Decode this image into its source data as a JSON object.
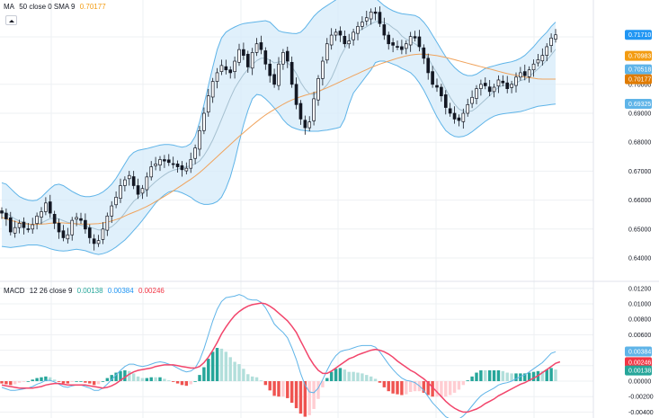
{
  "colors": {
    "up": "#26a69a",
    "down": "#ef5350",
    "upLight": "#b2dfdb",
    "downLight": "#ffcdd2",
    "band": "#5fb4e8",
    "bandFill": "#d6ebf9",
    "sma": "#a5c0d0",
    "ma50": "#f0a35c",
    "macdLine": "#5fb4e8",
    "signalLine": "#f2456b",
    "grid": "#eef0f3",
    "tagBlue": "#2196f3",
    "tagOrange": "#f39c12",
    "tagOrangeDark": "#e07b00",
    "tagLightBlue": "#5fb4e8",
    "tagRed": "#f23645",
    "tagTeal": "#26a69a"
  },
  "legend_main": {
    "name": "MA",
    "params": "50 close 0 SMA 9",
    "value": "0.70177"
  },
  "legend_macd": {
    "name": "MACD",
    "params": "12 26 close 9",
    "hist": "0.00138",
    "macd": "0.00384",
    "signal": "0.00246"
  },
  "chart_data": {
    "type": "candlestick",
    "price_axis": {
      "ticks": [
        "0.71640",
        "0.70000",
        "0.69000",
        "0.68000",
        "0.67000",
        "0.66000",
        "0.65000",
        "0.64000"
      ],
      "tags": [
        {
          "label": "0.71710",
          "value": 0.7171,
          "color": "tagBlue"
        },
        {
          "label": "0.70983",
          "value": 0.70983,
          "color": "tagOrange"
        },
        {
          "label": "0.70518",
          "value": 0.70518,
          "color": "tagLightBlue"
        },
        {
          "label": "0.70177",
          "value": 0.70177,
          "color": "tagOrangeDark"
        },
        {
          "label": "0.69325",
          "value": 0.69325,
          "color": "tagLightBlue"
        }
      ]
    },
    "macd_axis": {
      "ticks": [
        "0.01200",
        "0.01000",
        "0.00800",
        "0.00600",
        "0.00400",
        "0.00200",
        "0.00000",
        "-0.00200",
        "-0.00400"
      ],
      "tags": [
        {
          "label": "0.00384",
          "value": 0.00384,
          "color": "tagLightBlue"
        },
        {
          "label": "0.00246",
          "value": 0.00246,
          "color": "tagRed"
        },
        {
          "label": "0.00138",
          "value": 0.00138,
          "color": "tagTeal"
        }
      ]
    },
    "price_closes": [
      0.6555,
      0.6535,
      0.649,
      0.6505,
      0.652,
      0.6505,
      0.65,
      0.6515,
      0.6545,
      0.656,
      0.659,
      0.6555,
      0.652,
      0.649,
      0.647,
      0.648,
      0.653,
      0.654,
      0.653,
      0.65,
      0.647,
      0.645,
      0.646,
      0.65,
      0.6545,
      0.658,
      0.661,
      0.665,
      0.667,
      0.6685,
      0.665,
      0.662,
      0.664,
      0.668,
      0.6715,
      0.6725,
      0.674,
      0.6735,
      0.673,
      0.6725,
      0.6715,
      0.6705,
      0.671,
      0.674,
      0.678,
      0.684,
      0.69,
      0.696,
      0.701,
      0.704,
      0.7065,
      0.705,
      0.704,
      0.708,
      0.712,
      0.71,
      0.706,
      0.711,
      0.714,
      0.712,
      0.707,
      0.703,
      0.7,
      0.707,
      0.711,
      0.708,
      0.7,
      0.693,
      0.688,
      0.685,
      0.687,
      0.695,
      0.702,
      0.708,
      0.714,
      0.717,
      0.718,
      0.717,
      0.714,
      0.715,
      0.718,
      0.72,
      0.7215,
      0.723,
      0.725,
      0.7245,
      0.721,
      0.717,
      0.714,
      0.7135,
      0.713,
      0.712,
      0.714,
      0.7165,
      0.716,
      0.713,
      0.709,
      0.704,
      0.7,
      0.699,
      0.696,
      0.692,
      0.69,
      0.688,
      0.6875,
      0.69,
      0.693,
      0.6955,
      0.6985,
      0.7,
      0.6995,
      0.6975,
      0.699,
      0.7015,
      0.7005,
      0.6985,
      0.7,
      0.7025,
      0.704,
      0.703,
      0.705,
      0.707,
      0.7085,
      0.71,
      0.713,
      0.716,
      0.7171
    ],
    "sma9": [
      0.656,
      0.6555,
      0.6545,
      0.6535,
      0.6528,
      0.6522,
      0.6518,
      0.6515,
      0.6516,
      0.6521,
      0.6529,
      0.6536,
      0.6538,
      0.6535,
      0.6529,
      0.6523,
      0.6521,
      0.6518,
      0.6513,
      0.651,
      0.6506,
      0.6502,
      0.6497,
      0.6497,
      0.6501,
      0.6508,
      0.6521,
      0.6537,
      0.6556,
      0.6577,
      0.6596,
      0.6608,
      0.6621,
      0.6635,
      0.665,
      0.6664,
      0.6676,
      0.6687,
      0.6697,
      0.6703,
      0.6707,
      0.6711,
      0.6715,
      0.6719,
      0.6725,
      0.6735,
      0.6754,
      0.6779,
      0.6808,
      0.6843,
      0.6879,
      0.6916,
      0.6953,
      0.6986,
      0.7011,
      0.7034,
      0.7052,
      0.7068,
      0.7082,
      0.709,
      0.709,
      0.7084,
      0.7074,
      0.7077,
      0.7079,
      0.7074,
      0.7061,
      0.7037,
      0.7007,
      0.6984,
      0.6967,
      0.6965,
      0.6973,
      0.6982,
      0.6998,
      0.7022,
      0.7057,
      0.7095,
      0.7123,
      0.715,
      0.717,
      0.7181,
      0.7191,
      0.7199,
      0.7209,
      0.7216,
      0.7218,
      0.7213,
      0.7207,
      0.7195,
      0.7185,
      0.7167,
      0.7156,
      0.7148,
      0.714,
      0.713,
      0.7114,
      0.7092,
      0.7063,
      0.7039,
      0.7014,
      0.6983,
      0.6955,
      0.6932,
      0.6915,
      0.6907,
      0.6906,
      0.6908,
      0.6919,
      0.6933,
      0.6947,
      0.6961,
      0.6976,
      0.6989,
      0.6996,
      0.6997,
      0.6999,
      0.7004,
      0.7013,
      0.7017,
      0.7027,
      0.704,
      0.7053,
      0.7068,
      0.7083,
      0.7102,
      0.7121
    ],
    "ma50_line": [
      0.654,
      0.6535,
      0.653,
      0.6526,
      0.6522,
      0.6519,
      0.6517,
      0.6516,
      0.6516,
      0.6517,
      0.6518,
      0.652,
      0.6521,
      0.6522,
      0.6521,
      0.652,
      0.6519,
      0.6518,
      0.6517,
      0.6517,
      0.6517,
      0.6518,
      0.6519,
      0.6521,
      0.6524,
      0.6528,
      0.6533,
      0.6538,
      0.6545,
      0.6552,
      0.6558,
      0.6564,
      0.6571,
      0.6578,
      0.6586,
      0.6595,
      0.6604,
      0.6613,
      0.6622,
      0.6632,
      0.6642,
      0.6652,
      0.6662,
      0.6672,
      0.6683,
      0.6695,
      0.6708,
      0.6722,
      0.6736,
      0.675,
      0.6764,
      0.6778,
      0.6792,
      0.6806,
      0.682,
      0.6833,
      0.6846,
      0.6859,
      0.6871,
      0.6883,
      0.6894,
      0.6904,
      0.6913,
      0.6922,
      0.6931,
      0.6939,
      0.6946,
      0.6952,
      0.6957,
      0.6962,
      0.6966,
      0.6971,
      0.6976,
      0.6982,
      0.6988,
      0.6995,
      0.7002,
      0.7009,
      0.7016,
      0.7023,
      0.703,
      0.7037,
      0.7044,
      0.7051,
      0.7058,
      0.7064,
      0.707,
      0.7075,
      0.708,
      0.7085,
      0.709,
      0.7094,
      0.7098,
      0.7101,
      0.7103,
      0.7104,
      0.7104,
      0.7103,
      0.7101,
      0.7099,
      0.7096,
      0.7093,
      0.7089,
      0.7085,
      0.7081,
      0.7077,
      0.7073,
      0.7069,
      0.7065,
      0.7061,
      0.7057,
      0.7053,
      0.7049,
      0.7045,
      0.7041,
      0.7037,
      0.7034,
      0.7031,
      0.7028,
      0.7025,
      0.7023,
      0.7021,
      0.7019,
      0.7018,
      0.7018,
      0.7018,
      0.7018
    ],
    "bb_upper": [
      0.666,
      0.6655,
      0.664,
      0.6625,
      0.6612,
      0.6605,
      0.66,
      0.6598,
      0.66,
      0.661,
      0.6625,
      0.664,
      0.6652,
      0.6655,
      0.665,
      0.664,
      0.663,
      0.6622,
      0.6615,
      0.6612,
      0.6612,
      0.6615,
      0.662,
      0.6628,
      0.664,
      0.6655,
      0.6675,
      0.67,
      0.6725,
      0.675,
      0.6765,
      0.6772,
      0.6775,
      0.6778,
      0.6782,
      0.6786,
      0.679,
      0.6792,
      0.6792,
      0.679,
      0.6786,
      0.6783,
      0.6786,
      0.6795,
      0.682,
      0.687,
      0.693,
      0.6995,
      0.706,
      0.712,
      0.716,
      0.718,
      0.719,
      0.7198,
      0.7205,
      0.721,
      0.7212,
      0.7214,
      0.7216,
      0.7218,
      0.722,
      0.7215,
      0.72,
      0.7185,
      0.718,
      0.7178,
      0.7176,
      0.7175,
      0.718,
      0.7195,
      0.7215,
      0.7235,
      0.725,
      0.7262,
      0.7272,
      0.7282,
      0.7292,
      0.73,
      0.7308,
      0.7313,
      0.7318,
      0.732,
      0.7322,
      0.7318,
      0.731,
      0.7298,
      0.7285,
      0.7272,
      0.7262,
      0.7254,
      0.7248,
      0.7244,
      0.7242,
      0.724,
      0.7238,
      0.723,
      0.7215,
      0.7195,
      0.717,
      0.7145,
      0.712,
      0.7095,
      0.7075,
      0.7058,
      0.7045,
      0.7035,
      0.703,
      0.703,
      0.7035,
      0.7045,
      0.7055,
      0.706,
      0.7064,
      0.7068,
      0.7072,
      0.7075,
      0.7078,
      0.7083,
      0.709,
      0.71,
      0.7115,
      0.713,
      0.7148,
      0.7165,
      0.718,
      0.72,
      0.7215
    ],
    "bb_lower": [
      0.644,
      0.6438,
      0.6436,
      0.6438,
      0.644,
      0.6442,
      0.6445,
      0.6445,
      0.6445,
      0.6442,
      0.6438,
      0.6432,
      0.6428,
      0.6425,
      0.6424,
      0.6425,
      0.6428,
      0.643,
      0.6428,
      0.6425,
      0.642,
      0.6415,
      0.6412,
      0.6415,
      0.642,
      0.6428,
      0.6438,
      0.645,
      0.6462,
      0.6478,
      0.6495,
      0.6512,
      0.653,
      0.655,
      0.657,
      0.659,
      0.6605,
      0.6618,
      0.6628,
      0.6632,
      0.663,
      0.6625,
      0.6618,
      0.661,
      0.6598,
      0.659,
      0.6585,
      0.6585,
      0.6588,
      0.6595,
      0.661,
      0.664,
      0.668,
      0.6735,
      0.68,
      0.686,
      0.691,
      0.695,
      0.6965,
      0.6962,
      0.695,
      0.6935,
      0.6918,
      0.69,
      0.6878,
      0.6862,
      0.6852,
      0.6846,
      0.6842,
      0.684,
      0.6838,
      0.6838,
      0.6838,
      0.684,
      0.6842,
      0.6845,
      0.6848,
      0.6852,
      0.688,
      0.693,
      0.697,
      0.699,
      0.701,
      0.703,
      0.705,
      0.7075,
      0.708,
      0.708,
      0.7076,
      0.707,
      0.7064,
      0.7055,
      0.7048,
      0.704,
      0.7025,
      0.7005,
      0.698,
      0.695,
      0.6918,
      0.6888,
      0.6862,
      0.684,
      0.6828,
      0.682,
      0.6818,
      0.682,
      0.6826,
      0.6836,
      0.6848,
      0.686,
      0.6872,
      0.6882,
      0.689,
      0.6895,
      0.6898,
      0.69,
      0.6902,
      0.6904,
      0.6906,
      0.691,
      0.6915,
      0.692,
      0.6924,
      0.6926,
      0.6928,
      0.693,
      0.6932
    ],
    "macd_line": [
      -0.0008,
      -0.001,
      -0.0012,
      -0.0012,
      -0.0011,
      -0.001,
      -0.0009,
      -0.0007,
      -0.0004,
      -0.0002,
      0.0001,
      0.0001,
      -0.0001,
      -0.0004,
      -0.0007,
      -0.0008,
      -0.0006,
      -0.0005,
      -0.0005,
      -0.0007,
      -0.0009,
      -0.0012,
      -0.0012,
      -0.0009,
      -0.0004,
      0.0002,
      0.0008,
      0.0014,
      0.0019,
      0.0022,
      0.0022,
      0.002,
      0.0019,
      0.002,
      0.0022,
      0.0024,
      0.0025,
      0.0024,
      0.0022,
      0.002,
      0.0017,
      0.0014,
      0.0012,
      0.0013,
      0.0017,
      0.0027,
      0.0042,
      0.006,
      0.0078,
      0.0093,
      0.0103,
      0.0108,
      0.0109,
      0.011,
      0.0112,
      0.011,
      0.0106,
      0.0105,
      0.0105,
      0.0102,
      0.0095,
      0.0085,
      0.0074,
      0.0068,
      0.0063,
      0.0056,
      0.0043,
      0.0028,
      0.001,
      -0.0005,
      -0.0014,
      -0.0015,
      -0.0009,
      0.0002,
      0.0014,
      0.0025,
      0.0033,
      0.0038,
      0.004,
      0.0041,
      0.0043,
      0.0045,
      0.0046,
      0.0046,
      0.0046,
      0.0044,
      0.0038,
      0.003,
      0.0022,
      0.0015,
      0.0009,
      0.0004,
      0.0001,
      0.0,
      -0.0002,
      -0.0006,
      -0.0012,
      -0.002,
      -0.0028,
      -0.0034,
      -0.004,
      -0.0046,
      -0.0049,
      -0.005,
      -0.0049,
      -0.0045,
      -0.0039,
      -0.0032,
      -0.0025,
      -0.0019,
      -0.0015,
      -0.0012,
      -0.0009,
      -0.0005,
      -0.0003,
      -0.0002,
      0.0,
      0.0003,
      0.0006,
      0.0008,
      0.0012,
      0.0016,
      0.002,
      0.0024,
      0.003,
      0.0036,
      0.0038
    ],
    "signal_line": [
      -0.0005,
      -0.0006,
      -0.0007,
      -0.0008,
      -0.0009,
      -0.0009,
      -0.0009,
      -0.0009,
      -0.0008,
      -0.0007,
      -0.0005,
      -0.0004,
      -0.0003,
      -0.0003,
      -0.0004,
      -0.0005,
      -0.0005,
      -0.0005,
      -0.0005,
      -0.0005,
      -0.0006,
      -0.0007,
      -0.0008,
      -0.0009,
      -0.0008,
      -0.0006,
      -0.0003,
      0.0001,
      0.0005,
      0.0009,
      0.0012,
      0.0014,
      0.0015,
      0.0016,
      0.0017,
      0.0019,
      0.002,
      0.0021,
      0.0021,
      0.0021,
      0.002,
      0.0019,
      0.0018,
      0.0017,
      0.0017,
      0.0019,
      0.0024,
      0.0031,
      0.004,
      0.005,
      0.0061,
      0.007,
      0.0078,
      0.0085,
      0.009,
      0.0094,
      0.0097,
      0.0099,
      0.01,
      0.0101,
      0.01,
      0.0097,
      0.0093,
      0.0088,
      0.0083,
      0.0078,
      0.0071,
      0.0063,
      0.0052,
      0.0041,
      0.003,
      0.0021,
      0.0014,
      0.001,
      0.001,
      0.0013,
      0.0017,
      0.0021,
      0.0025,
      0.0029,
      0.0031,
      0.0034,
      0.0036,
      0.0038,
      0.004,
      0.0041,
      0.004,
      0.0038,
      0.0035,
      0.0031,
      0.0026,
      0.0022,
      0.0018,
      0.0014,
      0.0011,
      0.0007,
      0.0003,
      -0.0002,
      -0.0008,
      -0.0014,
      -0.002,
      -0.0026,
      -0.0031,
      -0.0035,
      -0.0038,
      -0.004,
      -0.004,
      -0.0038,
      -0.0036,
      -0.0033,
      -0.0029,
      -0.0026,
      -0.0023,
      -0.0019,
      -0.0016,
      -0.0013,
      -0.001,
      -0.0007,
      -0.0004,
      -0.0002,
      0.0001,
      0.0004,
      0.0007,
      0.0011,
      0.0015,
      0.0019,
      0.0023,
      0.0025
    ]
  }
}
